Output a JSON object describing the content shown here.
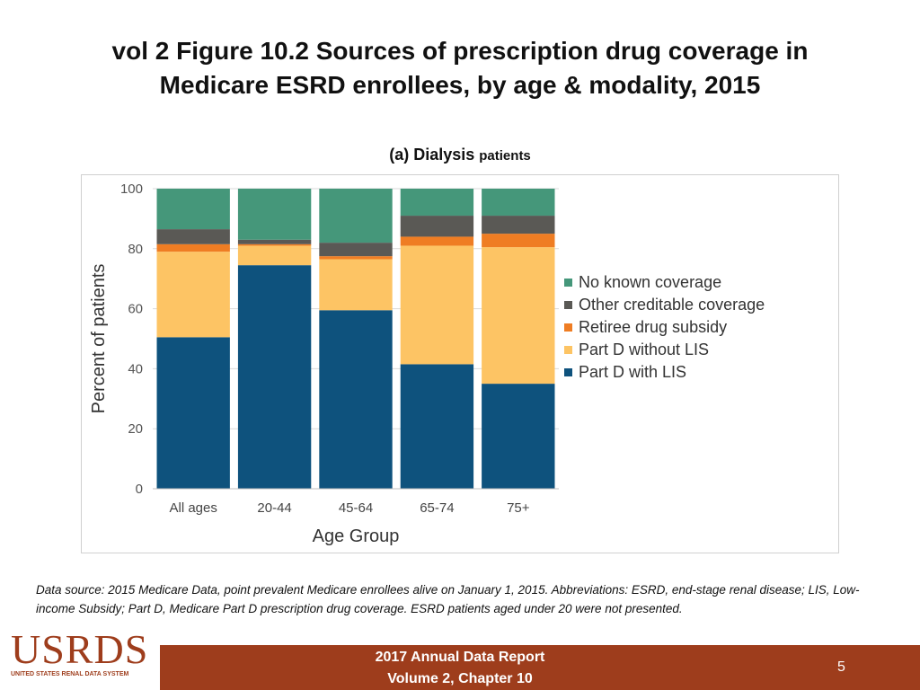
{
  "title_line1": "vol 2 Figure 10.2 Sources of prescription drug coverage in",
  "title_line2": "Medicare ESRD enrollees, by age & modality, 2015",
  "subtitle_main": "(a) Dialysis",
  "subtitle_small": "patients",
  "chart_data": {
    "type": "bar",
    "stacked": true,
    "title": "(a) Dialysis patients",
    "xlabel": "Age Group",
    "ylabel": "Percent of patients",
    "ylim": [
      0,
      100
    ],
    "yticks": [
      0,
      20,
      40,
      60,
      80,
      100
    ],
    "categories": [
      "All ages",
      "20-44",
      "45-64",
      "65-74",
      "75+"
    ],
    "series": [
      {
        "name": "Part D with LIS",
        "color": "#0e527d",
        "values": [
          50.5,
          74.5,
          59.5,
          41.5,
          35
        ]
      },
      {
        "name": "Part D without LIS",
        "color": "#fdc464",
        "values": [
          28.5,
          6.5,
          17,
          39.5,
          45.5
        ]
      },
      {
        "name": "Retiree drug subsidy",
        "color": "#ef7d23",
        "values": [
          2.5,
          0.5,
          1,
          3,
          4.5
        ]
      },
      {
        "name": "Other creditable coverage",
        "color": "#5a5955",
        "values": [
          5,
          1.5,
          4.5,
          7,
          6
        ]
      },
      {
        "name": "No known coverage",
        "color": "#45977a",
        "values": [
          13.5,
          17,
          18,
          9,
          9
        ]
      }
    ],
    "legend_position": "right",
    "grid": true
  },
  "footnote": "Data source: 2015 Medicare Data, point prevalent Medicare enrollees alive on January 1, 2015. Abbreviations: ESRD, end-stage renal disease; LIS, Low-income Subsidy; Part D, Medicare Part D prescription drug coverage. ESRD patients aged under 20 were not presented.",
  "footer": {
    "line1": "2017 Annual Data Report",
    "line2": "Volume 2, Chapter 10",
    "page_number": "5"
  },
  "logo": {
    "word": "USRDS",
    "subtitle": "UNITED STATES RENAL DATA SYSTEM"
  }
}
